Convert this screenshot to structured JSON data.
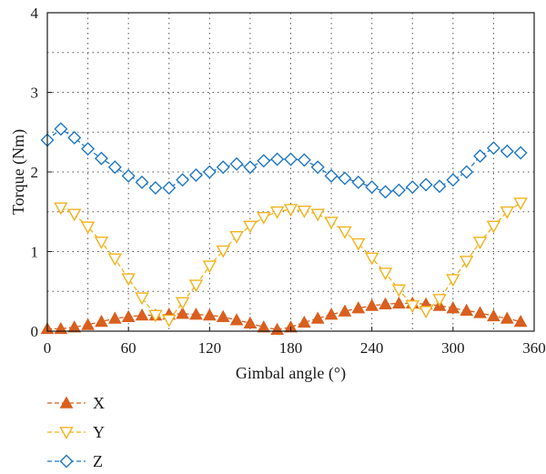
{
  "chart_data": {
    "type": "line",
    "xlabel": "Gimbal angle (°)",
    "ylabel": "Torque (Nm)",
    "xlim": [
      0,
      360
    ],
    "ylim": [
      0,
      4
    ],
    "xticks": [
      0,
      60,
      120,
      180,
      240,
      300,
      360
    ],
    "yticks": [
      0,
      1,
      2,
      3,
      4
    ],
    "grid": true,
    "legend_position": "bottom-left",
    "series": [
      {
        "name": "X",
        "color": "#d95f1e",
        "marker": "triangle-up-filled",
        "line": "dashed",
        "x": [
          0,
          10,
          20,
          30,
          40,
          50,
          60,
          70,
          80,
          90,
          100,
          110,
          120,
          130,
          140,
          150,
          160,
          170,
          180,
          190,
          200,
          210,
          220,
          230,
          240,
          250,
          260,
          270,
          280,
          290,
          300,
          310,
          320,
          330,
          340,
          350
        ],
        "y": [
          0.03,
          0.03,
          0.05,
          0.08,
          0.12,
          0.16,
          0.18,
          0.2,
          0.2,
          0.21,
          0.22,
          0.21,
          0.2,
          0.18,
          0.14,
          0.1,
          0.05,
          0.02,
          0.05,
          0.11,
          0.16,
          0.21,
          0.25,
          0.29,
          0.32,
          0.34,
          0.35,
          0.35,
          0.34,
          0.32,
          0.29,
          0.26,
          0.23,
          0.19,
          0.16,
          0.12
        ]
      },
      {
        "name": "Y",
        "color": "#f2b21c",
        "marker": "triangle-down-open",
        "line": "dashed",
        "x": [
          10,
          20,
          30,
          40,
          50,
          60,
          70,
          80,
          90,
          100,
          110,
          120,
          130,
          140,
          150,
          160,
          170,
          180,
          190,
          200,
          210,
          220,
          230,
          240,
          250,
          260,
          270,
          280,
          290,
          300,
          310,
          320,
          330,
          340,
          350
        ],
        "y": [
          1.55,
          1.47,
          1.31,
          1.12,
          0.91,
          0.66,
          0.42,
          0.2,
          0.14,
          0.36,
          0.58,
          0.82,
          1.01,
          1.19,
          1.32,
          1.43,
          1.5,
          1.53,
          1.51,
          1.47,
          1.37,
          1.25,
          1.1,
          0.92,
          0.73,
          0.52,
          0.32,
          0.25,
          0.4,
          0.65,
          0.88,
          1.12,
          1.32,
          1.5,
          1.61
        ]
      },
      {
        "name": "Z",
        "color": "#1f77c4",
        "marker": "diamond-open",
        "line": "dashed",
        "x": [
          0,
          10,
          20,
          30,
          40,
          50,
          60,
          70,
          80,
          90,
          100,
          110,
          120,
          130,
          140,
          150,
          160,
          170,
          180,
          190,
          200,
          210,
          220,
          230,
          240,
          250,
          260,
          270,
          280,
          290,
          300,
          310,
          320,
          330,
          340,
          350
        ],
        "y": [
          2.4,
          2.54,
          2.43,
          2.29,
          2.17,
          2.06,
          1.95,
          1.87,
          1.8,
          1.8,
          1.9,
          1.96,
          2.0,
          2.06,
          2.1,
          2.06,
          2.14,
          2.16,
          2.16,
          2.15,
          2.06,
          1.95,
          1.92,
          1.87,
          1.81,
          1.75,
          1.77,
          1.81,
          1.84,
          1.82,
          1.9,
          2.0,
          2.2,
          2.3,
          2.26,
          2.24
        ]
      }
    ]
  }
}
